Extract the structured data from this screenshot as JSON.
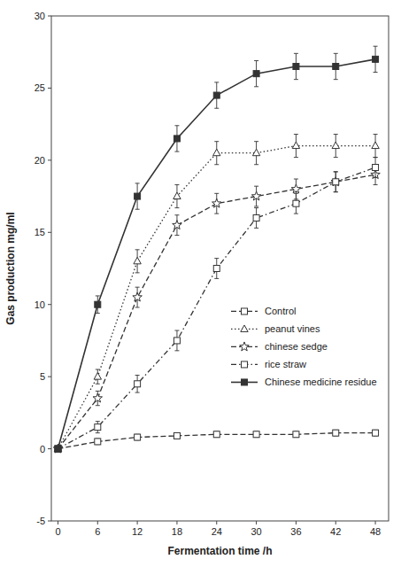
{
  "chart_data": {
    "type": "line",
    "xlabel": "Fermentation time /h",
    "ylabel": "Gas production mg/ml",
    "x": [
      0,
      6,
      12,
      18,
      24,
      30,
      36,
      42,
      48
    ],
    "series": [
      {
        "name": "Control",
        "color": "#333333",
        "marker": "square",
        "line_style": "dashed",
        "values": [
          0,
          0.5,
          0.8,
          0.9,
          1.0,
          1.0,
          1.0,
          1.1,
          1.1
        ],
        "errors": [
          0,
          0.2,
          0.2,
          0.2,
          0.2,
          0.2,
          0.2,
          0.2,
          0.2
        ]
      },
      {
        "name": "peanut vines",
        "color": "#333333",
        "marker": "triangle",
        "line_style": "dotted",
        "values": [
          0,
          5.0,
          13.0,
          17.5,
          20.5,
          20.5,
          21.0,
          21.0,
          21.0
        ],
        "errors": [
          0,
          0.5,
          0.8,
          0.8,
          0.8,
          0.8,
          0.8,
          0.8,
          0.8
        ]
      },
      {
        "name": "chinese sedge",
        "color": "#333333",
        "marker": "star",
        "line_style": "dashed",
        "values": [
          0,
          3.5,
          10.5,
          15.5,
          17.0,
          17.5,
          18.0,
          18.5,
          19.0
        ],
        "errors": [
          0,
          0.5,
          0.7,
          0.7,
          0.7,
          0.7,
          0.7,
          0.7,
          0.7
        ]
      },
      {
        "name": "rice straw",
        "color": "#333333",
        "marker": "square",
        "line_style": "dashdot",
        "values": [
          0,
          1.5,
          4.5,
          7.5,
          12.5,
          16.0,
          17.0,
          18.5,
          19.5
        ],
        "errors": [
          0,
          0.4,
          0.6,
          0.7,
          0.7,
          0.7,
          0.7,
          0.7,
          0.7
        ]
      },
      {
        "name": "Chinese medicine residue",
        "color": "#333333",
        "marker": "square-filled",
        "line_style": "solid",
        "values": [
          0,
          10.0,
          17.5,
          21.5,
          24.5,
          26.0,
          26.5,
          26.5,
          27.0
        ],
        "errors": [
          0,
          0.6,
          0.9,
          0.9,
          0.9,
          0.9,
          0.9,
          0.9,
          0.9
        ]
      }
    ],
    "xlim": [
      -1,
      50
    ],
    "ylim": [
      -5,
      30
    ],
    "xticks": [
      0,
      6,
      12,
      18,
      24,
      30,
      36,
      42,
      48
    ],
    "yticks": [
      -5,
      0,
      5,
      10,
      15,
      20,
      25,
      30
    ],
    "grid": false,
    "legend": "right"
  }
}
